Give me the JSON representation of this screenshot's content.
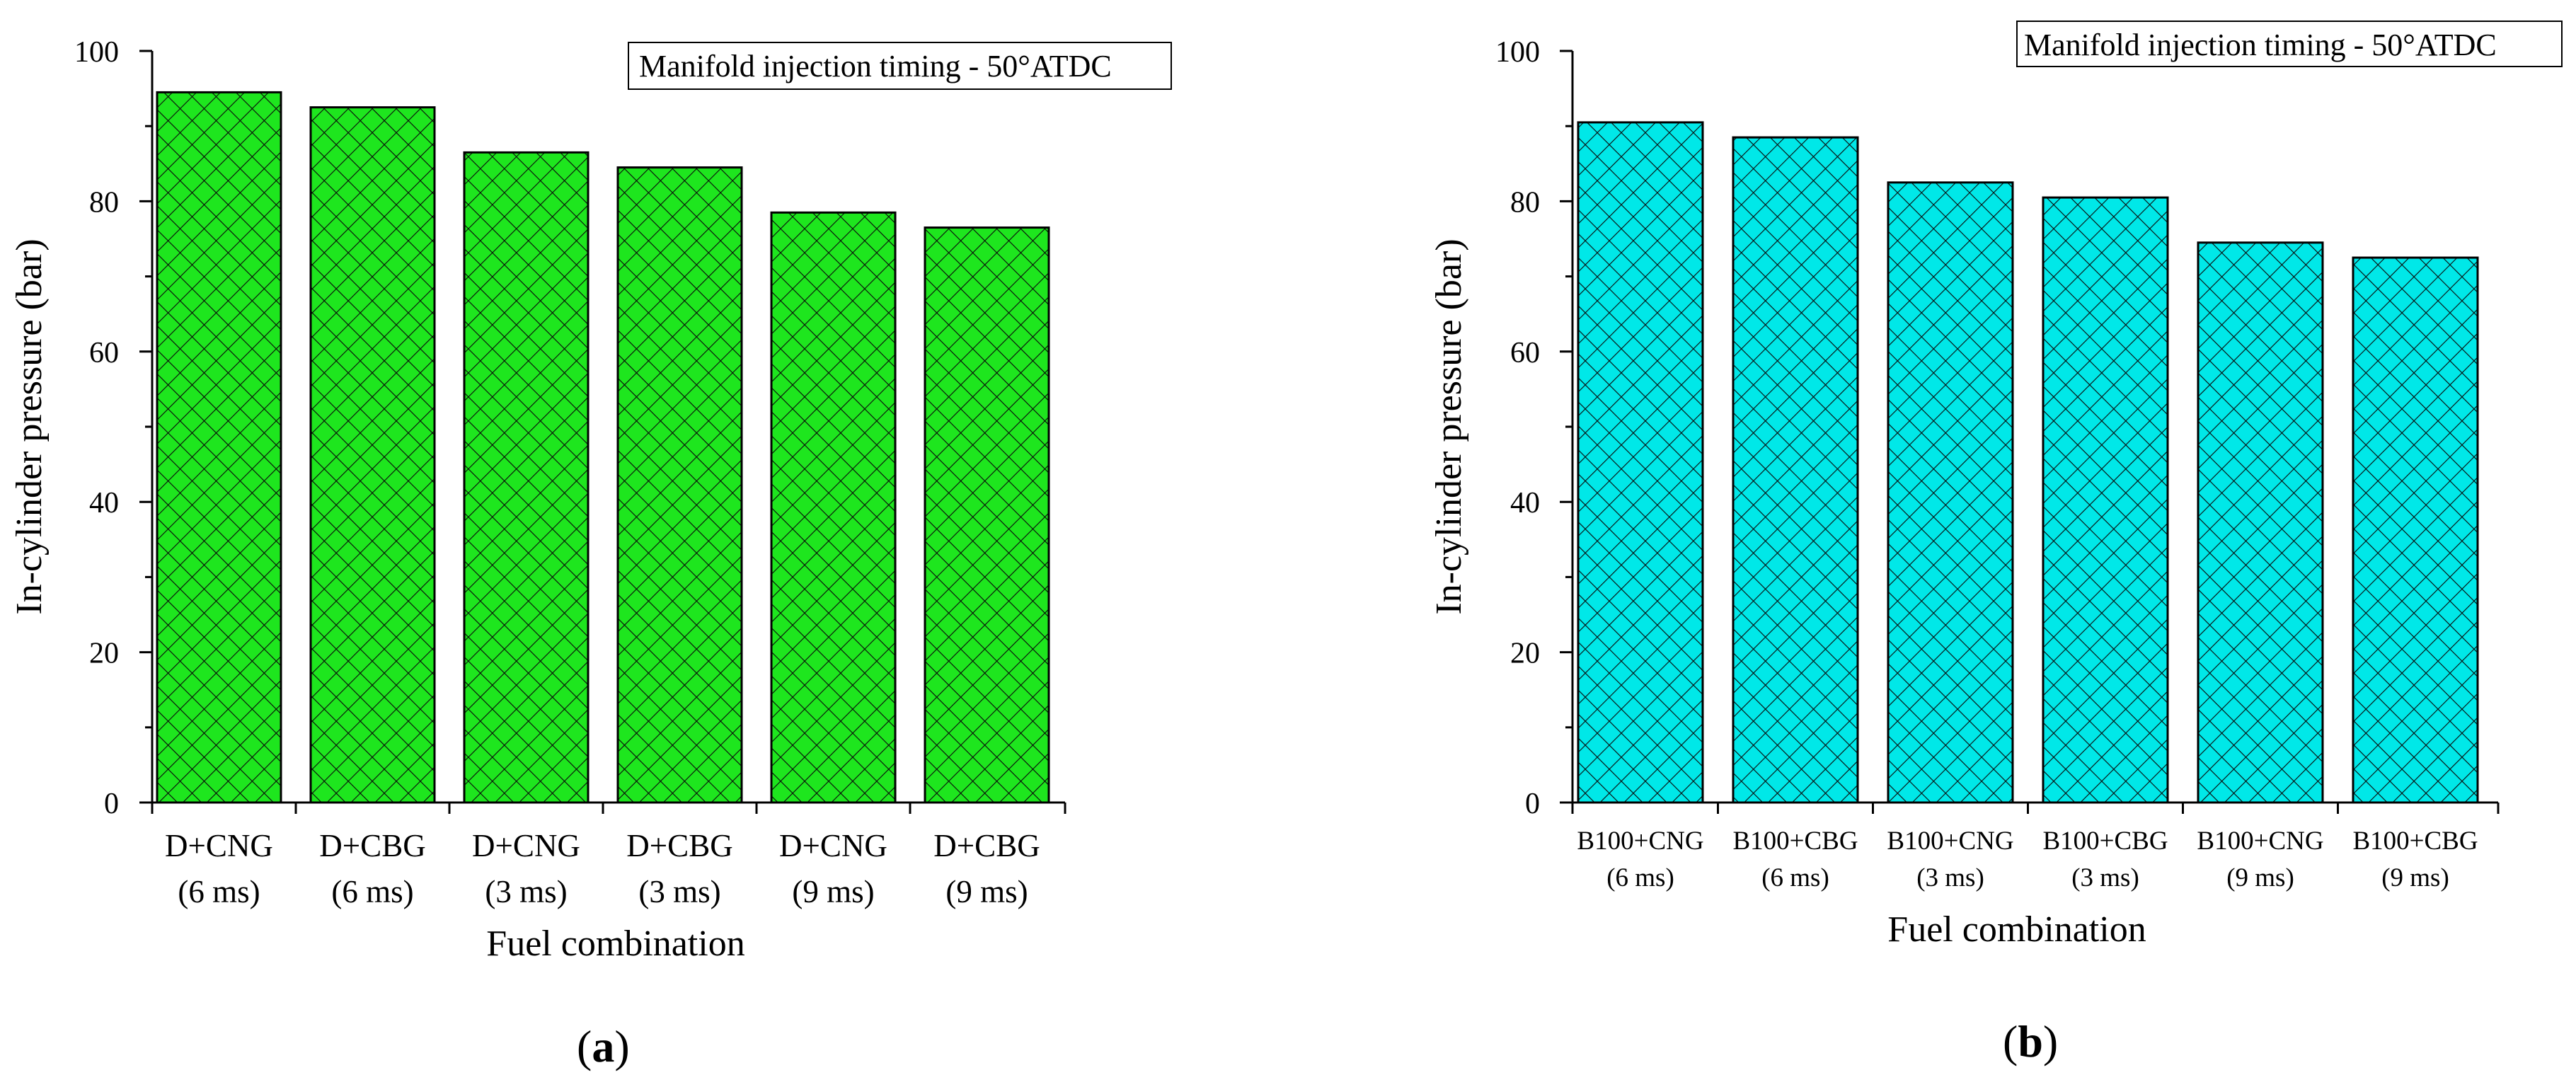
{
  "chart_data": [
    {
      "type": "bar",
      "panel_label": {
        "open": "(",
        "letter": "a",
        "close": ")"
      },
      "annotation": "Manifold injection timing - 50°ATDC",
      "xlabel": "Fuel combination",
      "ylabel": "In-cylinder pressure (bar)",
      "ylim": [
        0,
        100
      ],
      "yticks": [
        "0",
        "20",
        "40",
        "60",
        "80",
        "100"
      ],
      "categories": [
        [
          "D+CNG",
          "(6 ms)"
        ],
        [
          "D+CBG",
          "(6 ms)"
        ],
        [
          "D+CNG",
          "(3 ms)"
        ],
        [
          "D+CBG",
          "(3 ms)"
        ],
        [
          "D+CNG",
          "(9 ms)"
        ],
        [
          "D+CBG",
          "(9 ms)"
        ]
      ],
      "values": [
        94.5,
        92.5,
        86.5,
        84.5,
        78.5,
        76.5
      ],
      "bar_color": "#1ee61e",
      "pattern": "crosshatch",
      "grid": false
    },
    {
      "type": "bar",
      "panel_label": {
        "open": "(",
        "letter": "b",
        "close": ")"
      },
      "annotation": "Manifold injection timing - 50°ATDC",
      "xlabel": "Fuel combination",
      "ylabel": "In-cylinder pressure (bar)",
      "ylim": [
        0,
        100
      ],
      "yticks": [
        "0",
        "20",
        "40",
        "60",
        "80",
        "100"
      ],
      "categories": [
        [
          "B100+CNG",
          "(6 ms)"
        ],
        [
          "B100+CBG",
          "(6 ms)"
        ],
        [
          "B100+CNG",
          "(3 ms)"
        ],
        [
          "B100+CBG",
          "(3 ms)"
        ],
        [
          "B100+CNG",
          "(9 ms)"
        ],
        [
          "B100+CBG",
          "(9 ms)"
        ]
      ],
      "values": [
        90.5,
        88.5,
        82.5,
        80.5,
        74.5,
        72.5
      ],
      "bar_color": "#00e8e8",
      "pattern": "crosshatch",
      "grid": false
    }
  ]
}
